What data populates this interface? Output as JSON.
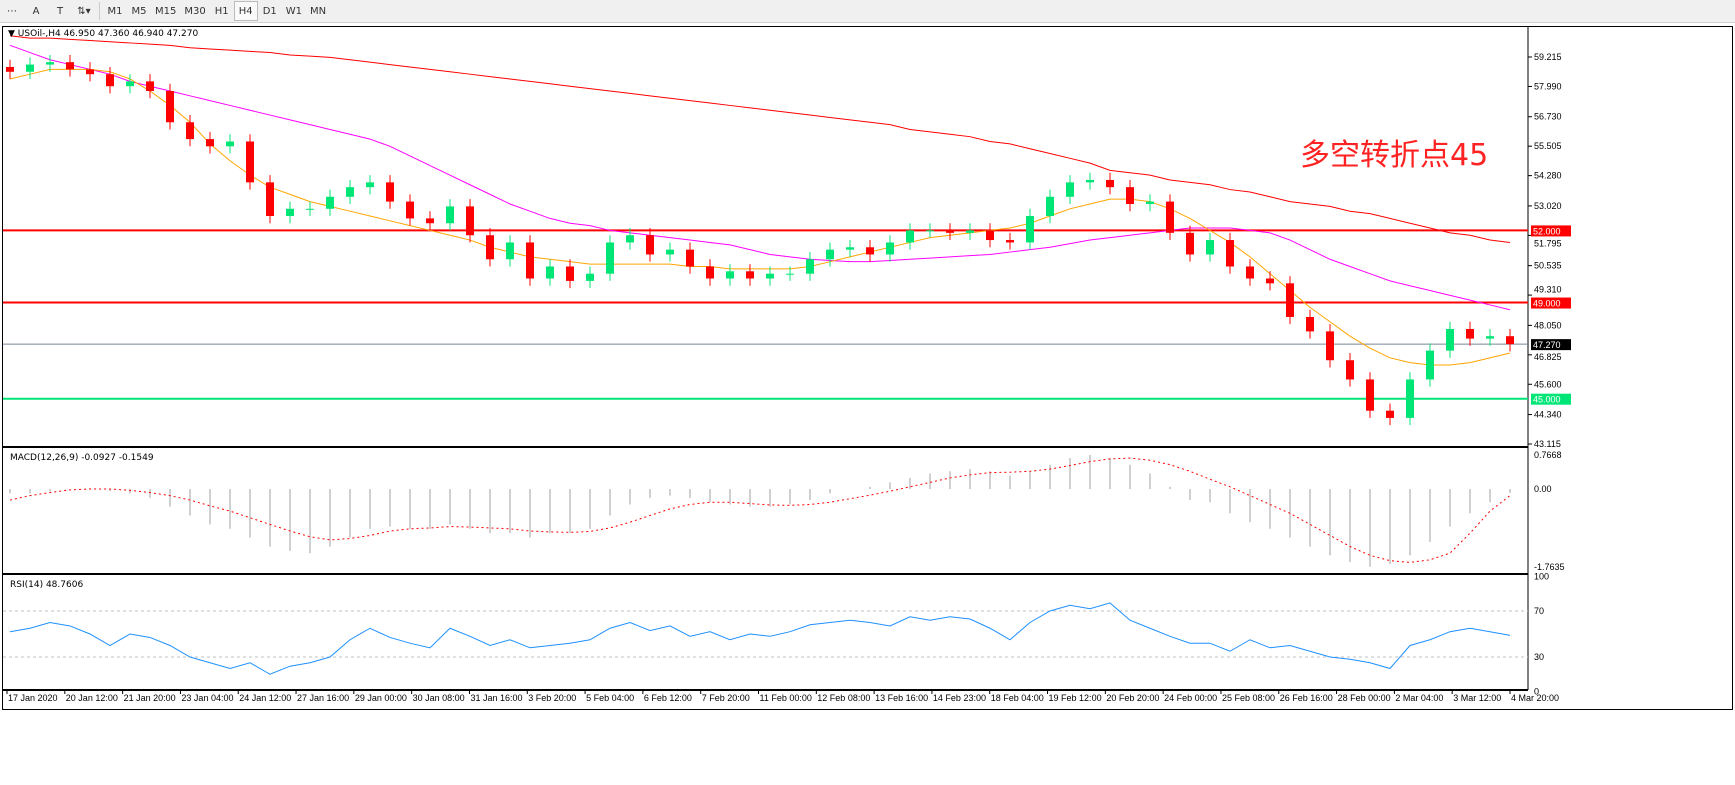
{
  "toolbar": {
    "tools": [
      {
        "name": "grid-icon",
        "glyph": "⋯"
      },
      {
        "name": "text-icon",
        "glyph": "A"
      },
      {
        "name": "text-label-icon",
        "glyph": "T"
      },
      {
        "name": "arrows-icon",
        "glyph": "⇅▾"
      }
    ],
    "timeframes": [
      "M1",
      "M5",
      "M15",
      "M30",
      "H1",
      "H4",
      "D1",
      "W1",
      "MN"
    ],
    "active": "H4"
  },
  "chart": {
    "header": "USOil-,H4  46.950 47.360 46.940 47.270",
    "annotation": "多空转折点45",
    "price_ticks": [
      "59.215",
      "57.990",
      "56.730",
      "55.505",
      "54.280",
      "53.020",
      "51.795",
      "50.535",
      "49.310",
      "48.050",
      "46.825",
      "45.600",
      "44.340",
      "43.115"
    ],
    "levels": [
      {
        "label": "52.000",
        "value": 52.0,
        "color": "#ff0000"
      },
      {
        "label": "49.000",
        "value": 49.0,
        "color": "#ff0000"
      },
      {
        "label": "45.000",
        "value": 45.0,
        "color": "#00e676"
      }
    ],
    "current": {
      "label": "47.270",
      "value": 47.27
    },
    "colors": {
      "bull": "#00e676",
      "bear": "#ff0000",
      "ma_fast": "#ffa500",
      "ma_mid": "#ff00ff",
      "ma_slow": "#ff0000",
      "rsi": "#1e90ff"
    },
    "dates": [
      "17 Jan 2020",
      "20 Jan 12:00",
      "21 Jan 20:00",
      "23 Jan 04:00",
      "24 Jan 12:00",
      "27 Jan 16:00",
      "29 Jan 00:00",
      "30 Jan 08:00",
      "31 Jan 16:00",
      "3 Feb 20:00",
      "5 Feb 04:00",
      "6 Feb 12:00",
      "7 Feb 20:00",
      "11 Feb 00:00",
      "12 Feb 08:00",
      "13 Feb 16:00",
      "14 Feb 23:00",
      "18 Feb 04:00",
      "19 Feb 12:00",
      "20 Feb 20:00",
      "24 Feb 00:00",
      "25 Feb 08:00",
      "26 Feb 16:00",
      "28 Feb 00:00",
      "2 Mar 04:00",
      "3 Mar 12:00",
      "4 Mar 20:00"
    ]
  },
  "chart_data": {
    "type": "candlestick",
    "close": [
      58.6,
      58.9,
      59.0,
      58.7,
      58.5,
      58.0,
      58.2,
      57.8,
      56.5,
      55.8,
      55.5,
      55.7,
      54.0,
      52.6,
      52.9,
      52.9,
      53.4,
      53.8,
      54.0,
      53.2,
      52.5,
      52.3,
      53.0,
      51.8,
      50.8,
      51.5,
      50.0,
      50.5,
      49.9,
      50.2,
      51.5,
      51.8,
      51.0,
      51.2,
      50.5,
      50.0,
      50.3,
      50.0,
      50.2,
      50.2,
      50.8,
      51.2,
      51.3,
      51.0,
      51.5,
      52.0,
      52.0,
      51.9,
      52.0,
      51.6,
      51.5,
      52.6,
      53.4,
      54.0,
      54.1,
      53.8,
      53.1,
      53.2,
      51.9,
      51.0,
      51.6,
      50.5,
      50.0,
      49.8,
      48.4,
      47.8,
      46.6,
      45.8,
      44.5,
      44.2,
      45.8,
      47.0,
      47.9,
      47.5,
      47.6,
      47.27
    ],
    "ma_fast": [
      58.3,
      58.5,
      58.7,
      58.7,
      58.7,
      58.6,
      58.3,
      57.8,
      57.2,
      56.5,
      55.6,
      54.9,
      54.3,
      53.8,
      53.5,
      53.2,
      53.0,
      52.8,
      52.6,
      52.4,
      52.2,
      52.0,
      51.8,
      51.6,
      51.3,
      51.1,
      50.9,
      50.8,
      50.7,
      50.6,
      50.6,
      50.6,
      50.6,
      50.6,
      50.5,
      50.5,
      50.4,
      50.4,
      50.4,
      50.4,
      50.5,
      50.7,
      50.9,
      51.1,
      51.3,
      51.5,
      51.7,
      51.8,
      51.9,
      52.0,
      52.1,
      52.3,
      52.6,
      52.9,
      53.1,
      53.3,
      53.3,
      53.2,
      52.9,
      52.5,
      52.0,
      51.5,
      50.9,
      50.2,
      49.5,
      48.8,
      48.2,
      47.6,
      47.1,
      46.7,
      46.5,
      46.4,
      46.4,
      46.5,
      46.7,
      46.9
    ],
    "ma_mid": [
      59.7,
      59.4,
      59.1,
      58.9,
      58.7,
      58.5,
      58.2,
      58.0,
      57.8,
      57.6,
      57.4,
      57.2,
      57.0,
      56.8,
      56.6,
      56.4,
      56.2,
      56.0,
      55.8,
      55.5,
      55.1,
      54.7,
      54.3,
      53.9,
      53.5,
      53.1,
      52.8,
      52.5,
      52.3,
      52.2,
      52.0,
      51.9,
      51.8,
      51.7,
      51.6,
      51.5,
      51.4,
      51.2,
      51.0,
      50.9,
      50.8,
      50.75,
      50.7,
      50.7,
      50.75,
      50.8,
      50.85,
      50.9,
      50.95,
      51.0,
      51.1,
      51.2,
      51.3,
      51.45,
      51.6,
      51.7,
      51.8,
      51.9,
      52.0,
      52.1,
      52.1,
      52.1,
      52.0,
      51.9,
      51.6,
      51.2,
      50.8,
      50.5,
      50.2,
      49.9,
      49.7,
      49.5,
      49.3,
      49.1,
      48.9,
      48.7
    ],
    "ma_slow": [
      60.1,
      60.0,
      60.0,
      59.95,
      59.9,
      59.85,
      59.8,
      59.75,
      59.7,
      59.6,
      59.55,
      59.5,
      59.45,
      59.4,
      59.3,
      59.25,
      59.2,
      59.1,
      59.0,
      58.9,
      58.8,
      58.7,
      58.6,
      58.5,
      58.4,
      58.3,
      58.2,
      58.1,
      58.0,
      57.9,
      57.8,
      57.7,
      57.6,
      57.5,
      57.4,
      57.3,
      57.2,
      57.1,
      57.0,
      56.9,
      56.8,
      56.7,
      56.6,
      56.5,
      56.4,
      56.2,
      56.1,
      56.0,
      55.9,
      55.7,
      55.6,
      55.4,
      55.2,
      55.0,
      54.8,
      54.5,
      54.4,
      54.3,
      54.1,
      54.0,
      53.9,
      53.7,
      53.6,
      53.4,
      53.2,
      53.1,
      53.0,
      52.8,
      52.7,
      52.5,
      52.3,
      52.1,
      51.9,
      51.8,
      51.6,
      51.5
    ],
    "macd": {
      "label": "MACD(12,26,9) -0.0927 -0.1549",
      "ticks": [
        "0.7668",
        "0.00",
        "-1.7635"
      ],
      "hist": [
        -0.1,
        -0.1,
        -0.05,
        0,
        0.02,
        -0.05,
        -0.1,
        -0.2,
        -0.4,
        -0.6,
        -0.8,
        -0.9,
        -1.1,
        -1.3,
        -1.4,
        -1.45,
        -1.3,
        -1.1,
        -0.9,
        -0.85,
        -0.9,
        -0.9,
        -0.8,
        -0.9,
        -1.0,
        -1.0,
        -1.1,
        -1.0,
        -1.0,
        -0.9,
        -0.6,
        -0.35,
        -0.2,
        -0.15,
        -0.2,
        -0.3,
        -0.35,
        -0.4,
        -0.4,
        -0.35,
        -0.25,
        -0.1,
        0.0,
        0.05,
        0.15,
        0.25,
        0.35,
        0.4,
        0.45,
        0.4,
        0.3,
        0.4,
        0.55,
        0.7,
        0.77,
        0.7,
        0.55,
        0.35,
        0.05,
        -0.25,
        -0.3,
        -0.55,
        -0.75,
        -0.9,
        -1.1,
        -1.3,
        -1.5,
        -1.65,
        -1.76,
        -1.7,
        -1.5,
        -1.2,
        -0.85,
        -0.55,
        -0.3,
        -0.09
      ],
      "signal": [
        -0.25,
        -0.15,
        -0.08,
        -0.02,
        0.0,
        0.0,
        -0.03,
        -0.08,
        -0.15,
        -0.25,
        -0.38,
        -0.5,
        -0.65,
        -0.8,
        -0.95,
        -1.08,
        -1.15,
        -1.12,
        -1.05,
        -0.95,
        -0.9,
        -0.88,
        -0.85,
        -0.86,
        -0.88,
        -0.9,
        -0.95,
        -0.97,
        -0.98,
        -0.96,
        -0.88,
        -0.75,
        -0.6,
        -0.45,
        -0.35,
        -0.3,
        -0.3,
        -0.33,
        -0.36,
        -0.37,
        -0.35,
        -0.3,
        -0.22,
        -0.14,
        -0.05,
        0.05,
        0.15,
        0.25,
        0.32,
        0.37,
        0.38,
        0.4,
        0.45,
        0.53,
        0.62,
        0.68,
        0.7,
        0.65,
        0.55,
        0.4,
        0.22,
        0.05,
        -0.15,
        -0.35,
        -0.55,
        -0.8,
        -1.05,
        -1.3,
        -1.5,
        -1.62,
        -1.66,
        -1.6,
        -1.45,
        -1.0,
        -0.5,
        -0.15
      ]
    },
    "rsi": {
      "label": "RSI(14) 48.7606",
      "ticks": [
        "100",
        "70",
        "30",
        "0"
      ],
      "levels": [
        70,
        30
      ],
      "values": [
        52,
        55,
        60,
        57,
        50,
        40,
        50,
        47,
        40,
        30,
        25,
        20,
        25,
        15,
        22,
        25,
        30,
        45,
        55,
        47,
        42,
        38,
        55,
        48,
        40,
        45,
        38,
        40,
        42,
        45,
        55,
        60,
        53,
        57,
        48,
        52,
        45,
        50,
        48,
        52,
        58,
        60,
        62,
        60,
        57,
        65,
        62,
        65,
        63,
        55,
        45,
        60,
        70,
        75,
        72,
        77,
        62,
        55,
        48,
        42,
        42,
        35,
        45,
        38,
        40,
        35,
        30,
        28,
        25,
        20,
        40,
        45,
        52,
        55,
        52,
        48.76
      ]
    },
    "ylim": [
      43.115,
      59.215
    ]
  }
}
